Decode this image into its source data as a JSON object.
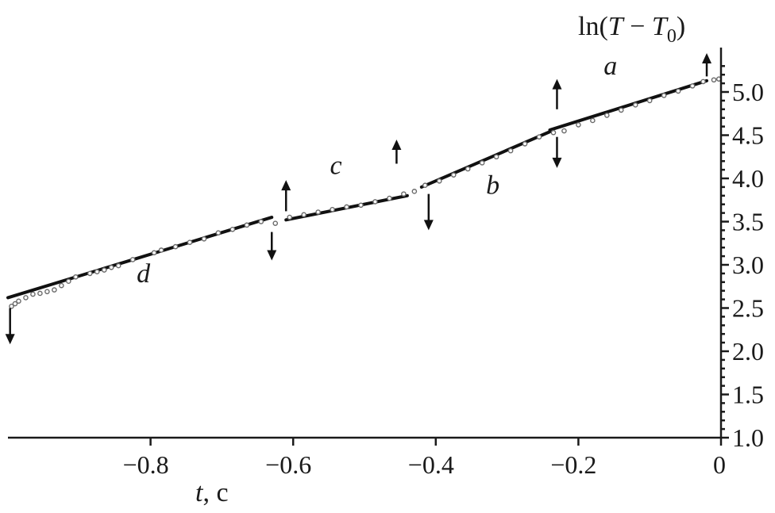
{
  "chart_data": {
    "type": "scatter",
    "xlabel_var": "t",
    "xlabel_unit": ", c",
    "ylabel_main": "ln(",
    "ylabel_var1": "T",
    "ylabel_minus": " − ",
    "ylabel_var2": "T",
    "ylabel_sub": "0",
    "ylabel_close": ")",
    "xlim": [
      -1.0,
      0.0
    ],
    "ylim": [
      1.0,
      5.4
    ],
    "x_ticks": [
      {
        "value": -0.8,
        "label": "−0.8"
      },
      {
        "value": -0.6,
        "label": "−0.6"
      },
      {
        "value": -0.4,
        "label": "−0.4"
      },
      {
        "value": -0.2,
        "label": "−0.2"
      },
      {
        "value": 0.0,
        "label": "0"
      }
    ],
    "y_ticks": [
      {
        "value": 1.0,
        "label": "1.0"
      },
      {
        "value": 1.5,
        "label": "1.5"
      },
      {
        "value": 2.0,
        "label": "2.0"
      },
      {
        "value": 2.5,
        "label": "2.5"
      },
      {
        "value": 3.0,
        "label": "3.0"
      },
      {
        "value": 3.5,
        "label": "3.5"
      },
      {
        "value": 4.0,
        "label": "4.0"
      },
      {
        "value": 4.5,
        "label": "4.5"
      },
      {
        "value": 5.0,
        "label": "5.0"
      }
    ],
    "grid": false,
    "segments": [
      {
        "label": "a",
        "x_start": -0.24,
        "x_end": -0.02,
        "y_start": 4.56,
        "y_end": 5.13,
        "label_x": -0.155,
        "label_y": 5.2
      },
      {
        "label": "b",
        "x_start": -0.42,
        "x_end": -0.24,
        "y_start": 3.9,
        "y_end": 4.54,
        "label_x": -0.32,
        "label_y": 3.82
      },
      {
        "label": "c",
        "x_start": -0.61,
        "x_end": -0.44,
        "y_start": 3.52,
        "y_end": 3.8,
        "label_x": -0.54,
        "label_y": 4.05
      },
      {
        "label": "d",
        "x_start": -1.0,
        "x_end": -0.63,
        "y_start": 2.62,
        "y_end": 3.55,
        "label_x": -0.81,
        "label_y": 2.8
      }
    ],
    "deviating_points": [
      {
        "x": -0.995,
        "y": 2.52
      },
      {
        "x": -0.99,
        "y": 2.55
      },
      {
        "x": -0.985,
        "y": 2.58
      },
      {
        "x": -0.975,
        "y": 2.62
      },
      {
        "x": -0.965,
        "y": 2.66
      },
      {
        "x": -0.955,
        "y": 2.67
      },
      {
        "x": -0.945,
        "y": 2.69
      },
      {
        "x": -0.935,
        "y": 2.71
      },
      {
        "x": -0.925,
        "y": 2.76
      },
      {
        "x": -0.915,
        "y": 2.81
      },
      {
        "x": -0.905,
        "y": 2.86
      },
      {
        "x": -0.885,
        "y": 2.9
      },
      {
        "x": -0.875,
        "y": 2.92
      },
      {
        "x": -0.865,
        "y": 2.94
      },
      {
        "x": -0.855,
        "y": 2.97
      },
      {
        "x": -0.845,
        "y": 2.99
      },
      {
        "x": -0.825,
        "y": 3.06
      },
      {
        "x": -0.795,
        "y": 3.14
      },
      {
        "x": -0.785,
        "y": 3.17
      },
      {
        "x": -0.765,
        "y": 3.21
      },
      {
        "x": -0.745,
        "y": 3.26
      },
      {
        "x": -0.725,
        "y": 3.3
      },
      {
        "x": -0.705,
        "y": 3.37
      },
      {
        "x": -0.685,
        "y": 3.41
      },
      {
        "x": -0.665,
        "y": 3.46
      },
      {
        "x": -0.645,
        "y": 3.5
      },
      {
        "x": -0.625,
        "y": 3.48
      },
      {
        "x": -0.605,
        "y": 3.55
      },
      {
        "x": -0.585,
        "y": 3.58
      },
      {
        "x": -0.565,
        "y": 3.61
      },
      {
        "x": -0.545,
        "y": 3.64
      },
      {
        "x": -0.525,
        "y": 3.67
      },
      {
        "x": -0.505,
        "y": 3.69
      },
      {
        "x": -0.485,
        "y": 3.73
      },
      {
        "x": -0.465,
        "y": 3.77
      },
      {
        "x": -0.445,
        "y": 3.82
      },
      {
        "x": -0.43,
        "y": 3.85
      },
      {
        "x": -0.415,
        "y": 3.92
      },
      {
        "x": -0.395,
        "y": 3.97
      },
      {
        "x": -0.375,
        "y": 4.04
      },
      {
        "x": -0.355,
        "y": 4.11
      },
      {
        "x": -0.335,
        "y": 4.18
      },
      {
        "x": -0.315,
        "y": 4.25
      },
      {
        "x": -0.295,
        "y": 4.32
      },
      {
        "x": -0.275,
        "y": 4.4
      },
      {
        "x": -0.255,
        "y": 4.48
      },
      {
        "x": -0.235,
        "y": 4.53
      },
      {
        "x": -0.22,
        "y": 4.55
      },
      {
        "x": -0.2,
        "y": 4.62
      },
      {
        "x": -0.18,
        "y": 4.67
      },
      {
        "x": -0.16,
        "y": 4.73
      },
      {
        "x": -0.14,
        "y": 4.79
      },
      {
        "x": -0.12,
        "y": 4.85
      },
      {
        "x": -0.1,
        "y": 4.9
      },
      {
        "x": -0.08,
        "y": 4.96
      },
      {
        "x": -0.06,
        "y": 5.01
      },
      {
        "x": -0.04,
        "y": 5.07
      },
      {
        "x": -0.025,
        "y": 5.12
      },
      {
        "x": -0.01,
        "y": 5.14
      },
      {
        "x": -0.003,
        "y": 5.15
      }
    ],
    "arrows": [
      {
        "x": -0.02,
        "direction": "up",
        "y_from": 5.18,
        "y_to": 5.45
      },
      {
        "x": -0.23,
        "direction": "up",
        "y_from": 4.8,
        "y_to": 5.15
      },
      {
        "x": -0.23,
        "direction": "down",
        "y_from": 4.48,
        "y_to": 4.12
      },
      {
        "x": -0.455,
        "direction": "up",
        "y_from": 4.17,
        "y_to": 4.45
      },
      {
        "x": -0.41,
        "direction": "down",
        "y_from": 3.82,
        "y_to": 3.4
      },
      {
        "x": -0.61,
        "direction": "up",
        "y_from": 3.62,
        "y_to": 3.98
      },
      {
        "x": -0.63,
        "direction": "down",
        "y_from": 3.38,
        "y_to": 3.05
      },
      {
        "x": -0.997,
        "direction": "down",
        "y_from": 2.5,
        "y_to": 2.08
      }
    ]
  }
}
